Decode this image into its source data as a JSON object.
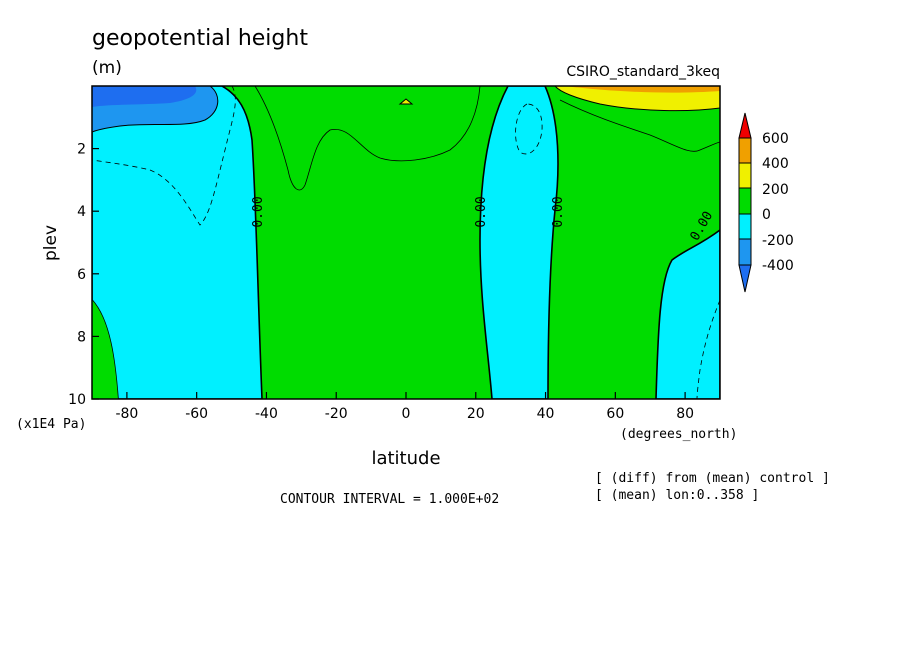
{
  "chart_data": {
    "type": "heatmap",
    "title": "geopotential height",
    "units": "(m)",
    "dataset": "CSIRO_standard_3keq",
    "xlabel": "latitude",
    "x_units": "(degrees_north)",
    "ylabel": "plev",
    "y_units": "(x1E4 Pa)",
    "xlim": [
      -90,
      90
    ],
    "ylim": [
      10,
      0
    ],
    "x_ticks": [
      -80,
      -60,
      -40,
      -20,
      0,
      20,
      40,
      60,
      80
    ],
    "y_ticks": [
      2,
      4,
      6,
      8,
      10
    ],
    "contour_interval_text": "CONTOUR INTERVAL = 1.000E+02",
    "contour_interval": 100,
    "zero_contour_label": "0.00",
    "notes": [
      "[ (diff) from (mean) control ]",
      "[ (mean) lon:0..358 ]"
    ],
    "colorbar": {
      "levels": [
        -400,
        -200,
        0,
        200,
        400,
        600
      ],
      "labels": [
        "600",
        "400",
        "200",
        "0",
        "-200",
        "-400"
      ],
      "colors": {
        "below_-400": "#1e6ef0",
        "-400_-200": "#1e96f0",
        "-200_0": "#00f0ff",
        "0_200": "#00dc00",
        "200_400": "#f0f000",
        "400_600": "#f0a000",
        "above_600": "#f00000"
      }
    },
    "regions": [
      {
        "lat_range": [
          -90,
          -45
        ],
        "plev_range": [
          0,
          10
        ],
        "value_range": [
          -200,
          0
        ]
      },
      {
        "lat_range": [
          -90,
          -55
        ],
        "plev_range": [
          0,
          1.2
        ],
        "value_range": [
          -400,
          -200
        ]
      },
      {
        "lat_range": [
          -45,
          25
        ],
        "plev_range": [
          0,
          10
        ],
        "value_range": [
          0,
          200
        ]
      },
      {
        "lat_range": [
          25,
          42
        ],
        "plev_range": [
          0,
          10
        ],
        "value_range": [
          -200,
          0
        ]
      },
      {
        "lat_range": [
          42,
          72
        ],
        "plev_range": [
          0,
          10
        ],
        "value_range": [
          0,
          200
        ]
      },
      {
        "lat_range": [
          72,
          90
        ],
        "plev_range": [
          4,
          10
        ],
        "value_range": [
          -200,
          0
        ]
      },
      {
        "lat_range": [
          50,
          90
        ],
        "plev_range": [
          0,
          0.7
        ],
        "value_range": [
          200,
          400
        ]
      }
    ]
  }
}
